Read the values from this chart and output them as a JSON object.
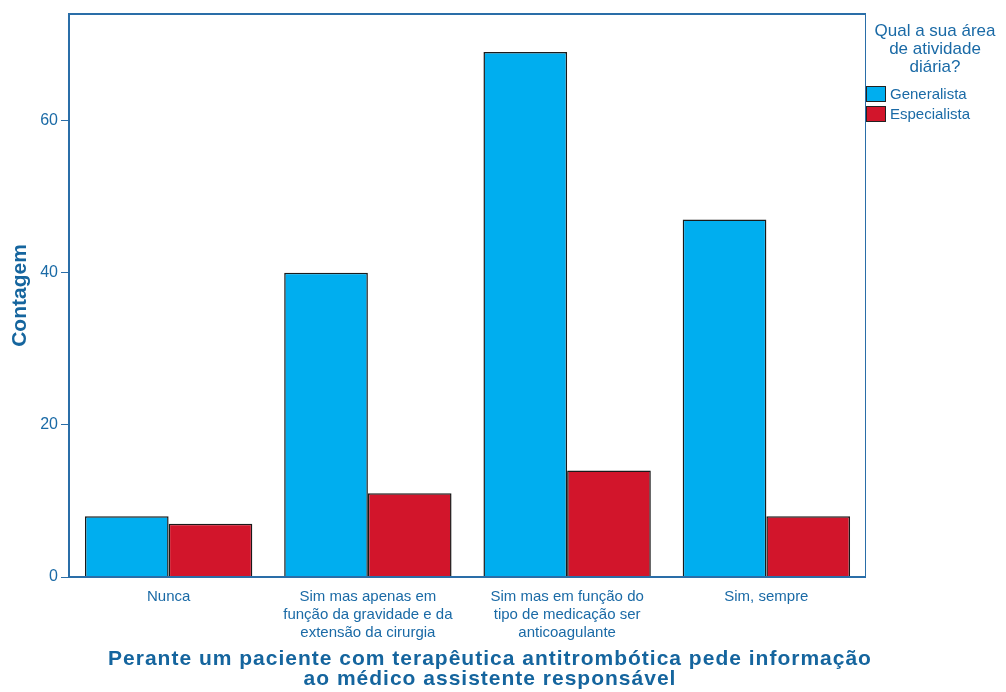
{
  "chart_data": {
    "type": "bar",
    "xlabel": "Perante um paciente com terapêutica antitrombótica pede informação ao médico assistente responsável",
    "ylabel": "Contagem",
    "legend_title": "Qual a sua área de atividade diária?",
    "categories": [
      "Nunca",
      "Sim mas apenas em função da gravidade e da extensão da cirurgia",
      "Sim mas em função do tipo de medicação ser anticoagulante",
      "Sim, sempre"
    ],
    "series": [
      {
        "name": "Generalista",
        "color": "#00aeef",
        "values": [
          8,
          40,
          69,
          47
        ]
      },
      {
        "name": "Especialista",
        "color": "#d2152b",
        "values": [
          7,
          11,
          14,
          8
        ]
      }
    ],
    "ylim": [
      0,
      74
    ],
    "yticks": [
      0,
      20,
      40,
      60
    ],
    "grid": false,
    "legend": "top right"
  }
}
